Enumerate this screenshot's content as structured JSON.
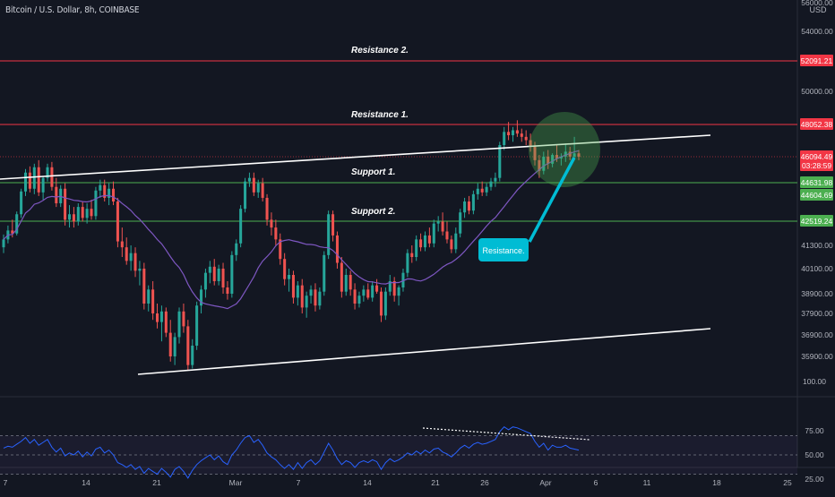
{
  "header": {
    "title": "Bitcoin / U.S. Dollar, 8h, COINBASE",
    "currency": "USD"
  },
  "colors": {
    "background": "#131722",
    "up": "#26a69a",
    "down": "#ef5350",
    "resistance": "#f23645",
    "support": "#4caf50",
    "ma": "#7e57c2",
    "trend": "#ffffff",
    "callout": "#00bcd4",
    "highlight": "#4caf50"
  },
  "chart_data": [
    {
      "type": "candlestick",
      "title": "Bitcoin / U.S. Dollar, 8h, COINBASE",
      "x_ticks": [
        "7",
        "14",
        "21",
        "Mar",
        "7",
        "14",
        "21",
        "26",
        "Apr",
        "6",
        "11",
        "18",
        "25"
      ],
      "y_ticks": [
        "56000.00",
        "54000.00",
        "50000.00",
        "41300.00",
        "40100.00",
        "38900.00",
        "37900.00",
        "36900.00",
        "35900.00"
      ],
      "ylim": [
        34500,
        56000
      ],
      "price_labels": [
        {
          "label": "52091.21",
          "kind": "resistance",
          "value": 52091.21
        },
        {
          "label": "48052.38",
          "kind": "resistance",
          "value": 48052.38
        },
        {
          "label": "46094.49",
          "sub": "03:28:59",
          "kind": "current",
          "value": 46094.49
        },
        {
          "label": "44631.98",
          "kind": "support",
          "value": 44631.98
        },
        {
          "label": "44604.69",
          "kind": "support",
          "value": 44604.69
        },
        {
          "label": "42519.24",
          "kind": "support",
          "value": 42519.24
        }
      ],
      "levels": [
        {
          "name": "Resistance 2.",
          "value": 52091.21,
          "kind": "resistance"
        },
        {
          "name": "Resistance 1.",
          "value": 48052.38,
          "kind": "resistance"
        },
        {
          "name": "Support 1.",
          "value": 44631.98,
          "kind": "support"
        },
        {
          "name": "Support 2.",
          "value": 42519.24,
          "kind": "support"
        }
      ],
      "annotations": [
        {
          "text": "Resistance."
        }
      ],
      "candles": [
        [
          41200,
          41850,
          40900,
          41600
        ],
        [
          41600,
          42300,
          41400,
          42050
        ],
        [
          42050,
          42600,
          41700,
          41900
        ],
        [
          41900,
          43050,
          41800,
          42900
        ],
        [
          42900,
          44300,
          42700,
          44150
        ],
        [
          44150,
          45400,
          43900,
          45200
        ],
        [
          45200,
          45550,
          44100,
          44300
        ],
        [
          44300,
          45700,
          44000,
          45500
        ],
        [
          45500,
          45900,
          43900,
          44100
        ],
        [
          44100,
          45000,
          43700,
          44900
        ],
        [
          44900,
          45700,
          44700,
          45500
        ],
        [
          45500,
          45800,
          44200,
          44400
        ],
        [
          44400,
          44900,
          43300,
          43500
        ],
        [
          43500,
          44500,
          43300,
          44300
        ],
        [
          44300,
          44600,
          42300,
          42600
        ],
        [
          42600,
          43400,
          42200,
          42900
        ],
        [
          42900,
          43300,
          42200,
          42500
        ],
        [
          42500,
          43500,
          42300,
          43300
        ],
        [
          43300,
          43600,
          42500,
          42700
        ],
        [
          42700,
          43500,
          42400,
          43200
        ],
        [
          43200,
          43700,
          42600,
          42800
        ],
        [
          42800,
          44400,
          42600,
          44200
        ],
        [
          44200,
          44800,
          43800,
          44500
        ],
        [
          44500,
          44800,
          43600,
          43800
        ],
        [
          43800,
          44600,
          43400,
          44300
        ],
        [
          44300,
          44700,
          43400,
          43600
        ],
        [
          43600,
          43800,
          41200,
          41500
        ],
        [
          41500,
          42200,
          40700,
          41200
        ],
        [
          41200,
          41700,
          40300,
          40500
        ],
        [
          40500,
          41300,
          40000,
          40900
        ],
        [
          40900,
          41200,
          39700,
          40000
        ],
        [
          40000,
          40500,
          39300,
          40100
        ],
        [
          40100,
          40400,
          38100,
          38400
        ],
        [
          38400,
          39300,
          38000,
          39100
        ],
        [
          39100,
          39500,
          37600,
          37900
        ],
        [
          37900,
          38400,
          37200,
          37500
        ],
        [
          37500,
          38300,
          36600,
          38000
        ],
        [
          38000,
          38200,
          36800,
          37000
        ],
        [
          37000,
          37600,
          35600,
          35900
        ],
        [
          35900,
          37000,
          35400,
          36800
        ],
        [
          36800,
          38200,
          36500,
          38000
        ],
        [
          38000,
          38400,
          37000,
          37300
        ],
        [
          37300,
          37600,
          35100,
          35400
        ],
        [
          35400,
          36700,
          35200,
          36400
        ],
        [
          36400,
          38500,
          36200,
          38300
        ],
        [
          38300,
          39300,
          37900,
          39100
        ],
        [
          39100,
          40100,
          38700,
          39900
        ],
        [
          39900,
          40500,
          39400,
          40200
        ],
        [
          40200,
          40600,
          39300,
          39500
        ],
        [
          39500,
          40300,
          39300,
          40100
        ],
        [
          40100,
          40400,
          38900,
          39200
        ],
        [
          39200,
          39500,
          38600,
          38900
        ],
        [
          38900,
          41000,
          38700,
          40800
        ],
        [
          40800,
          41600,
          40500,
          41400
        ],
        [
          41400,
          43400,
          41200,
          43200
        ],
        [
          43200,
          44900,
          43000,
          44700
        ],
        [
          44700,
          45200,
          44400,
          44900
        ],
        [
          44900,
          45200,
          43900,
          44100
        ],
        [
          44100,
          44800,
          43800,
          44600
        ],
        [
          44600,
          44900,
          43600,
          43800
        ],
        [
          43800,
          44000,
          42300,
          42600
        ],
        [
          42600,
          43000,
          41800,
          42200
        ],
        [
          42200,
          42600,
          41300,
          41600
        ],
        [
          41600,
          41900,
          40300,
          40600
        ],
        [
          40600,
          40900,
          39300,
          39600
        ],
        [
          39600,
          40100,
          39000,
          39800
        ],
        [
          39800,
          40000,
          38400,
          38700
        ],
        [
          38700,
          39500,
          38300,
          39300
        ],
        [
          39300,
          39600,
          37900,
          38200
        ],
        [
          38200,
          39000,
          37700,
          38800
        ],
        [
          38800,
          39300,
          38400,
          39100
        ],
        [
          39100,
          39400,
          38000,
          38300
        ],
        [
          38300,
          39200,
          38100,
          39000
        ],
        [
          39000,
          41000,
          38800,
          40800
        ],
        [
          40800,
          43100,
          40600,
          42900
        ],
        [
          42900,
          43100,
          41500,
          41800
        ],
        [
          41800,
          42000,
          40100,
          40400
        ],
        [
          40400,
          40700,
          38700,
          39000
        ],
        [
          39000,
          40100,
          38800,
          39800
        ],
        [
          39800,
          40000,
          38800,
          39100
        ],
        [
          39100,
          39400,
          38100,
          38400
        ],
        [
          38400,
          39000,
          38200,
          38800
        ],
        [
          38800,
          39300,
          38500,
          39100
        ],
        [
          39100,
          39400,
          38600,
          38700
        ],
        [
          38700,
          39500,
          38500,
          39300
        ],
        [
          39300,
          39600,
          38900,
          39000
        ],
        [
          39000,
          39200,
          37500,
          37800
        ],
        [
          37800,
          39200,
          37600,
          39000
        ],
        [
          39000,
          39800,
          38800,
          39500
        ],
        [
          39500,
          39700,
          38500,
          38800
        ],
        [
          38800,
          39300,
          38300,
          39200
        ],
        [
          39200,
          40100,
          39000,
          39900
        ],
        [
          39900,
          41100,
          39700,
          40900
        ],
        [
          40900,
          41300,
          40400,
          40700
        ],
        [
          40700,
          41800,
          40500,
          41600
        ],
        [
          41600,
          41900,
          41000,
          41200
        ],
        [
          41200,
          42000,
          41000,
          41800
        ],
        [
          41800,
          42200,
          41200,
          41400
        ],
        [
          41400,
          42600,
          41200,
          42400
        ],
        [
          42400,
          42800,
          42000,
          42500
        ],
        [
          42500,
          43000,
          41800,
          42000
        ],
        [
          42000,
          42500,
          41400,
          41600
        ],
        [
          41600,
          41800,
          40900,
          41100
        ],
        [
          41100,
          42200,
          40900,
          41900
        ],
        [
          41900,
          43200,
          41700,
          43000
        ],
        [
          43000,
          43800,
          42700,
          43600
        ],
        [
          43600,
          43900,
          42900,
          43100
        ],
        [
          43100,
          44200,
          42900,
          44000
        ],
        [
          44000,
          44600,
          43700,
          44300
        ],
        [
          44300,
          44700,
          43900,
          44100
        ],
        [
          44100,
          44600,
          43900,
          44400
        ],
        [
          44400,
          44900,
          44200,
          44700
        ],
        [
          44700,
          45200,
          44400,
          44900
        ],
        [
          44900,
          47000,
          44700,
          46800
        ],
        [
          46800,
          47900,
          46500,
          47600
        ],
        [
          47600,
          48200,
          47100,
          47400
        ],
        [
          47400,
          47900,
          47000,
          47700
        ],
        [
          47700,
          48300,
          47300,
          47500
        ],
        [
          47500,
          47800,
          47000,
          47300
        ],
        [
          47300,
          47700,
          46800,
          47100
        ],
        [
          47100,
          47500,
          46400,
          46700
        ],
        [
          46700,
          47000,
          45600,
          45900
        ],
        [
          45900,
          46200,
          44900,
          45300
        ],
        [
          45300,
          46400,
          45100,
          46100
        ],
        [
          46100,
          46500,
          45400,
          45700
        ],
        [
          45700,
          46300,
          45500,
          46200
        ],
        [
          46200,
          46800,
          45800,
          46000
        ],
        [
          46000,
          46300,
          45600,
          46100
        ],
        [
          46100,
          46900,
          45800,
          46400
        ],
        [
          46400,
          46700,
          45900,
          46100
        ],
        [
          46100,
          47300,
          45900,
          46300
        ],
        [
          46300,
          46500,
          45900,
          46094.49
        ]
      ]
    },
    {
      "type": "line",
      "title": "RSI",
      "y_ticks": [
        "100.00",
        "75.00",
        "50.00",
        "25.00"
      ],
      "ylim": [
        13,
        108
      ],
      "values": [
        57,
        59,
        58,
        61,
        64,
        68,
        62,
        66,
        60,
        63,
        66,
        58,
        53,
        57,
        49,
        52,
        50,
        54,
        48,
        53,
        49,
        56,
        58,
        52,
        55,
        50,
        42,
        40,
        37,
        40,
        35,
        38,
        31,
        36,
        33,
        30,
        36,
        32,
        27,
        35,
        38,
        33,
        26,
        34,
        40,
        44,
        47,
        50,
        45,
        49,
        43,
        40,
        50,
        55,
        62,
        68,
        70,
        63,
        66,
        60,
        52,
        48,
        45,
        40,
        36,
        40,
        35,
        42,
        36,
        42,
        45,
        40,
        44,
        53,
        62,
        55,
        46,
        40,
        44,
        42,
        37,
        42,
        44,
        42,
        45,
        43,
        35,
        42,
        46,
        43,
        45,
        48,
        52,
        50,
        54,
        51,
        55,
        52,
        56,
        57,
        53,
        51,
        48,
        52,
        57,
        60,
        57,
        61,
        63,
        61,
        62,
        64,
        66,
        74,
        79,
        76,
        79,
        78,
        76,
        74,
        72,
        64,
        58,
        62,
        55,
        60,
        58,
        58,
        60,
        57,
        56,
        55
      ],
      "band": [
        30,
        70
      ],
      "x_labels": [
        "7",
        "14",
        "21",
        "Mar",
        "7",
        "14",
        "21",
        "26",
        "Apr",
        "6",
        "11",
        "18",
        "25"
      ]
    }
  ]
}
